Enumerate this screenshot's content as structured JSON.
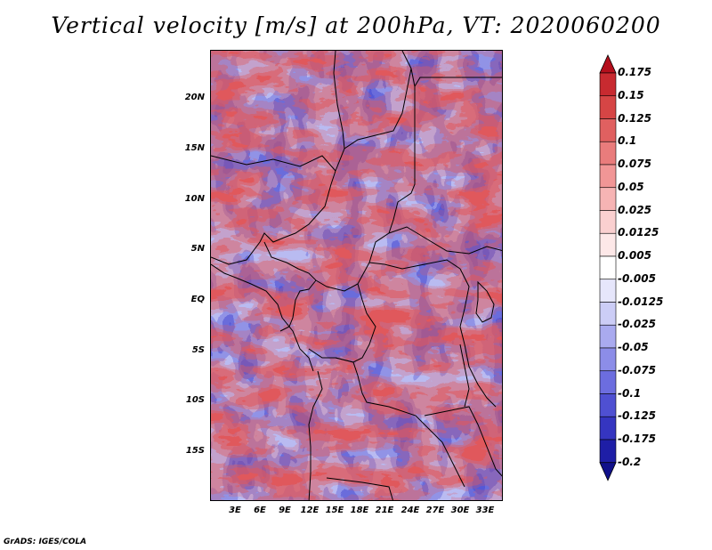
{
  "title": "Vertical velocity [m/s] at 200hPa, VT: 2020060200",
  "credit": "GrADS: IGES/COLA",
  "lat_labels": [
    "20N",
    "15N",
    "10N",
    "5N",
    "EQ",
    "5S",
    "10S",
    "15S"
  ],
  "lon_labels": [
    "3E",
    "6E",
    "9E",
    "12E",
    "15E",
    "18E",
    "21E",
    "24E",
    "27E",
    "30E",
    "33E"
  ],
  "colorbar": {
    "labels": [
      "0.175",
      "0.15",
      "0.125",
      "0.1",
      "0.075",
      "0.05",
      "0.025",
      "0.0125",
      "0.005",
      "-0.005",
      "-0.0125",
      "-0.025",
      "-0.05",
      "-0.075",
      "-0.1",
      "-0.125",
      "-0.175",
      "-0.2"
    ],
    "colors": [
      "#b40f1c",
      "#c82a30",
      "#d64545",
      "#e06060",
      "#e97c7c",
      "#f19696",
      "#f6b4b4",
      "#fad0d0",
      "#fde8e8",
      "#ffffff",
      "#e6e6fb",
      "#cccdf6",
      "#a9aaef",
      "#8c8de8",
      "#6c6ddf",
      "#4f50d2",
      "#3535c0",
      "#1e1ea6",
      "#10108a"
    ]
  }
}
